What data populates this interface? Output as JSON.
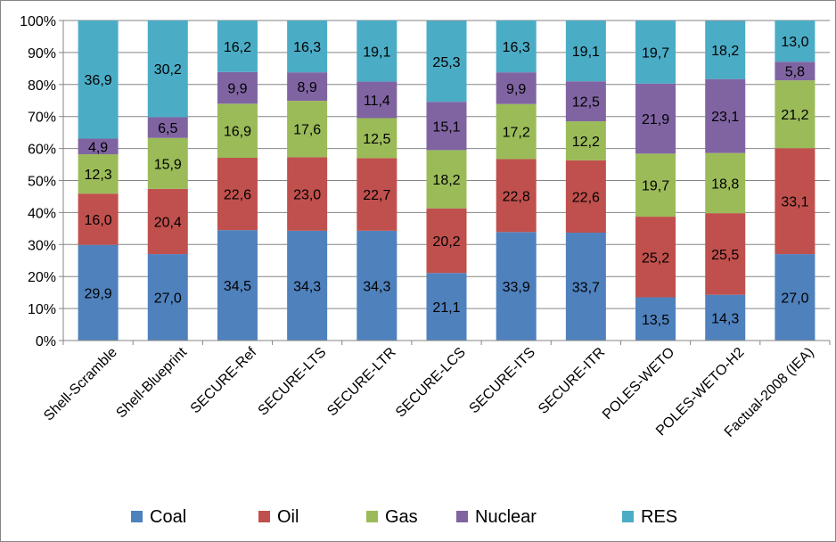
{
  "chart_data": {
    "type": "bar",
    "stacked": true,
    "percent_stacked": true,
    "categories": [
      "Shell-Scramble",
      "Shell-Blueprint",
      "SECURE-Ref",
      "SECURE-LTS",
      "SECURE-LTR",
      "SECURE-LCS",
      "SECURE-ITS",
      "SECURE-ITR",
      "POLES-WETO",
      "POLES-WETO-H2",
      "Factual-2008 (IEA)"
    ],
    "series": [
      {
        "name": "Coal",
        "color": "#4F81BD",
        "values": [
          29.9,
          27.0,
          34.5,
          34.3,
          34.3,
          21.1,
          33.9,
          33.7,
          13.5,
          14.3,
          27.0
        ],
        "labels": [
          "29,9",
          "27,0",
          "34,5",
          "34,3",
          "34,3",
          "21,1",
          "33,9",
          "33,7",
          "13,5",
          "14,3",
          "27,0"
        ]
      },
      {
        "name": "Oil",
        "color": "#C0504D",
        "values": [
          16.0,
          20.4,
          22.6,
          23.0,
          22.7,
          20.2,
          22.8,
          22.6,
          25.2,
          25.5,
          33.1
        ],
        "labels": [
          "16,0",
          "20,4",
          "22,6",
          "23,0",
          "22,7",
          "20,2",
          "22,8",
          "22,6",
          "25,2",
          "25,5",
          "33,1"
        ]
      },
      {
        "name": "Gas",
        "color": "#9BBB59",
        "values": [
          12.3,
          15.9,
          16.9,
          17.6,
          12.5,
          18.2,
          17.2,
          12.2,
          19.7,
          18.8,
          21.2
        ],
        "labels": [
          "12,3",
          "15,9",
          "16,9",
          "17,6",
          "12,5",
          "18,2",
          "17,2",
          "12,2",
          "19,7",
          "18,8",
          "21,2"
        ]
      },
      {
        "name": "Nuclear",
        "color": "#8064A2",
        "values": [
          4.9,
          6.5,
          9.9,
          8.9,
          11.4,
          15.1,
          9.9,
          12.5,
          21.9,
          23.1,
          5.8
        ],
        "labels": [
          "4,9",
          "6,5",
          "9,9",
          "8,9",
          "11,4",
          "15,1",
          "9,9",
          "12,5",
          "21,9",
          "23,1",
          "5,8"
        ]
      },
      {
        "name": "RES",
        "color": "#4BACC6",
        "values": [
          36.9,
          30.2,
          16.2,
          16.3,
          19.1,
          25.3,
          16.3,
          19.1,
          19.7,
          18.2,
          13.0
        ],
        "labels": [
          "36,9",
          "30,2",
          "16,2",
          "16,3",
          "19,1",
          "25,3",
          "16,3",
          "19,1",
          "19,7",
          "18,2",
          "13,0"
        ]
      }
    ],
    "y_ticks": [
      "0%",
      "10%",
      "20%",
      "30%",
      "40%",
      "50%",
      "60%",
      "70%",
      "80%",
      "90%",
      "100%"
    ],
    "ylim": [
      0,
      100
    ],
    "grid": true,
    "legend_position": "bottom"
  }
}
